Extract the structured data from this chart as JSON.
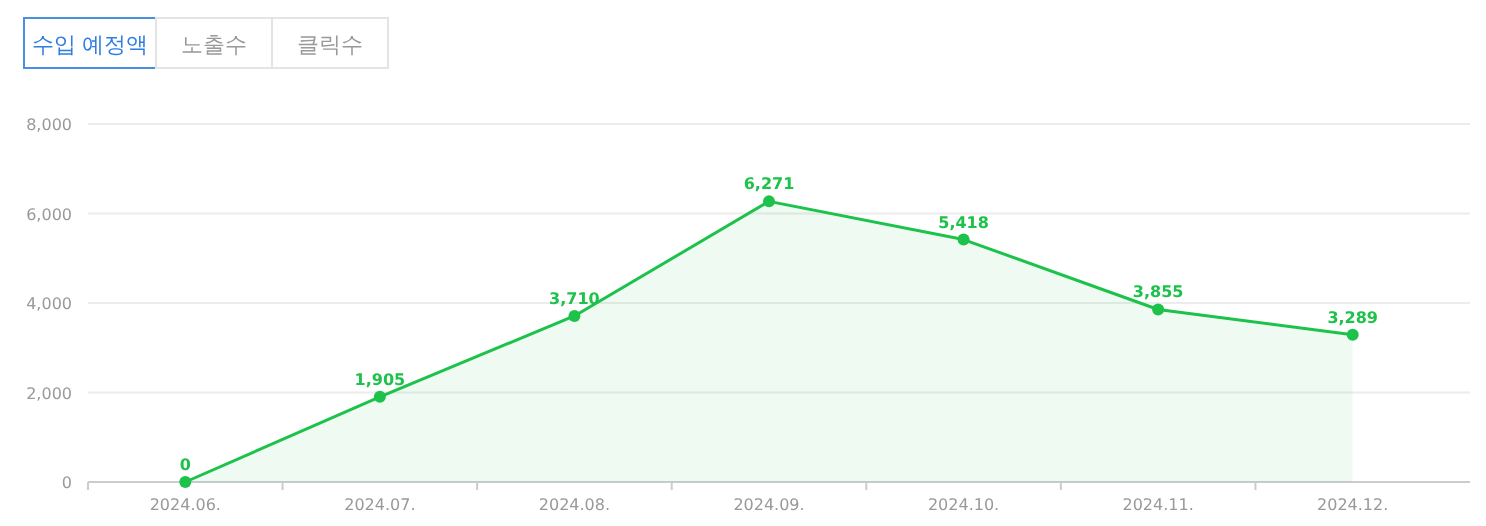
{
  "chart_data": {
    "type": "area",
    "title": "수입 예정액",
    "annotations": [
      "노출수",
      "클릭수"
    ],
    "categories": [
      "2024.06.",
      "2024.07.",
      "2024.08.",
      "2024.09.",
      "2024.10.",
      "2024.11.",
      "2024.12."
    ],
    "series": [
      {
        "color": "#1cc24a",
        "values": [
          0,
          1905,
          3710,
          6271,
          5418,
          3855,
          3289
        ],
        "value_labels": [
          "0",
          "1,905",
          "3,710",
          "6,271",
          "5,418",
          "3,855",
          "3,289"
        ]
      }
    ],
    "ylim": [
      0,
      8000
    ],
    "yticks": [
      {
        "value": 0,
        "label": "0"
      },
      {
        "value": 2000,
        "label": "2,000"
      },
      {
        "value": 4000,
        "label": "4,000"
      },
      {
        "value": 6000,
        "label": "6,000"
      },
      {
        "value": 8000,
        "label": "8,000"
      }
    ],
    "grid": "y",
    "marker": "circle"
  }
}
